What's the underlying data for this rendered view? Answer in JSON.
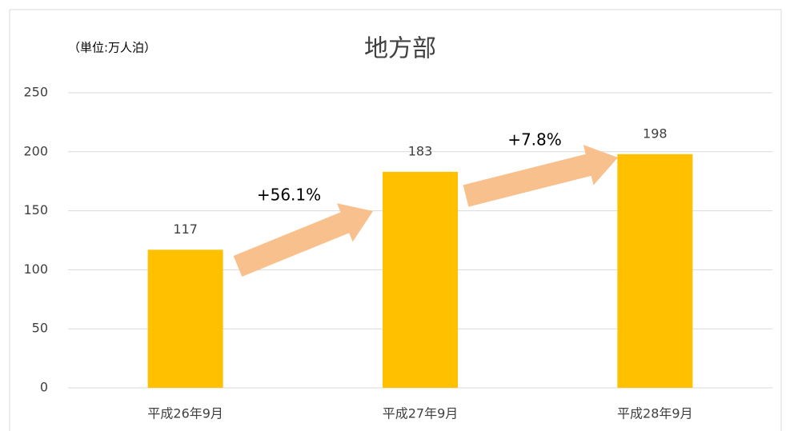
{
  "chart_data": {
    "type": "bar",
    "title": "地方部",
    "subtitle": "（単位:万人泊）",
    "categories": [
      "平成26年9月",
      "平成27年9月",
      "平成28年9月"
    ],
    "values": [
      117,
      183,
      198
    ],
    "color": "#ffc000",
    "ylim": [
      0,
      250
    ],
    "yticks": [
      0,
      50,
      100,
      150,
      200,
      250
    ],
    "grid": true,
    "annotations": [
      "+56.1%",
      "+7.8%"
    ]
  }
}
